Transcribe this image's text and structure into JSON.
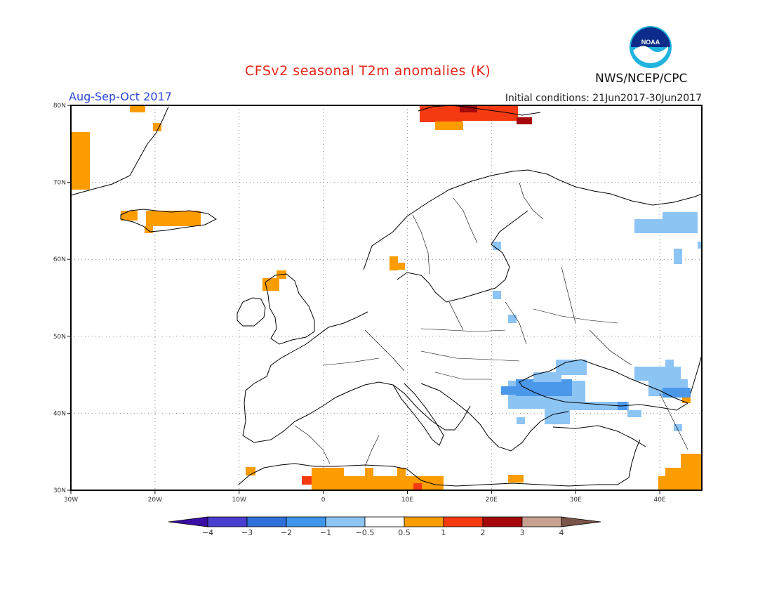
{
  "header": {
    "title": "CFSv2 seasonal T2m anomalies (K)",
    "period": "Aug-Sep-Oct 2017",
    "initial_conditions": "Initial conditions: 21Jun2017-30Jun2017",
    "agency": "NWS/NCEP/CPC",
    "logo_text": "NOAA"
  },
  "map": {
    "lon_range": [
      -30,
      45
    ],
    "lat_range": [
      30,
      80
    ],
    "lat_labels": [
      "80N",
      "70N",
      "60N",
      "50N",
      "40N",
      "30N"
    ],
    "lon_labels": [
      "30W",
      "20W",
      "10W",
      "0",
      "10E",
      "20E",
      "30E",
      "40E"
    ],
    "grid": true
  },
  "colorbar": {
    "labels": [
      "-4",
      "-3",
      "-2",
      "-1",
      "-0.5",
      "0.5",
      "1",
      "2",
      "3",
      "4"
    ],
    "colors": [
      "#3a0ea5",
      "#4a3ed0",
      "#2f6fd8",
      "#3f94ec",
      "#8cc4f4",
      "#ffffff",
      "#fb9c00",
      "#f53a12",
      "#a5080a",
      "#c8a090",
      "#7a5448"
    ]
  }
}
